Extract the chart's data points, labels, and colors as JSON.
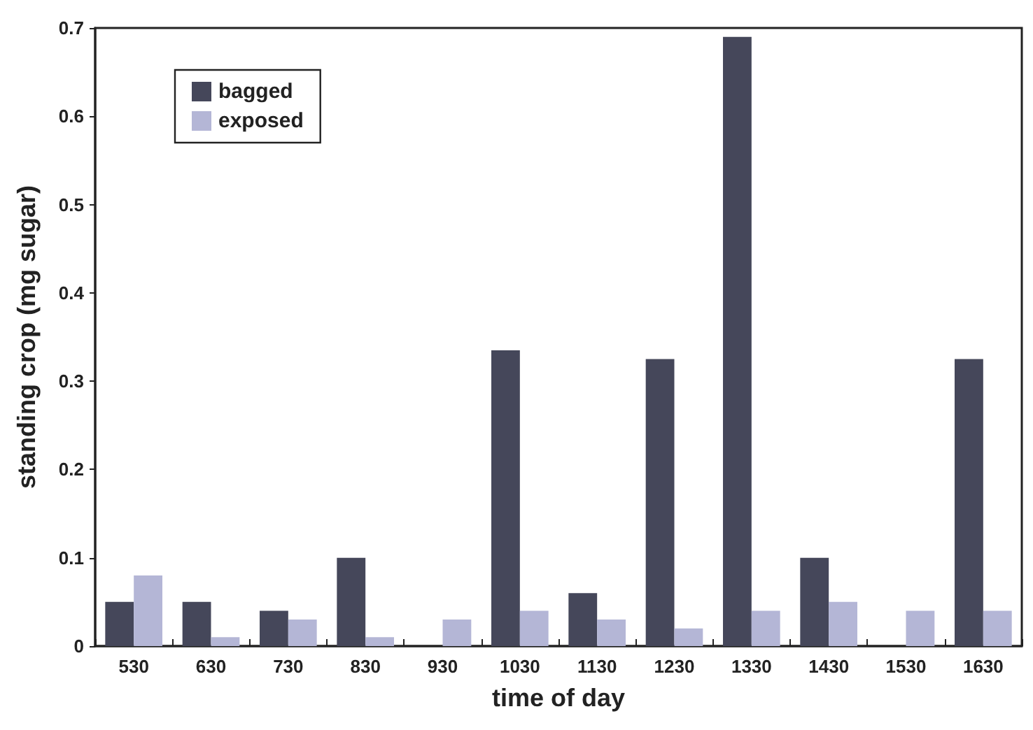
{
  "chart_data": {
    "type": "bar",
    "xlabel": "time of day",
    "ylabel": "standing crop (mg sugar)",
    "categories": [
      "530",
      "630",
      "730",
      "830",
      "930",
      "1030",
      "1130",
      "1230",
      "1330",
      "1430",
      "1530",
      "1630"
    ],
    "series": [
      {
        "name": "bagged",
        "color": "#45475a",
        "values": [
          0.05,
          0.05,
          0.04,
          0.1,
          0,
          0.335,
          0.06,
          0.325,
          0.69,
          0.1,
          0,
          0.325
        ]
      },
      {
        "name": "exposed",
        "color": "#b4b6d6",
        "values": [
          0.08,
          0.01,
          0.03,
          0.01,
          0.03,
          0.04,
          0.03,
          0.02,
          0.04,
          0.05,
          0.04,
          0.04
        ]
      }
    ],
    "ylim": [
      0,
      0.7
    ],
    "yticks": [
      0,
      0.1,
      0.2,
      0.3,
      0.4,
      0.5,
      0.6,
      0.7
    ],
    "grid": false,
    "legend": "top left"
  }
}
